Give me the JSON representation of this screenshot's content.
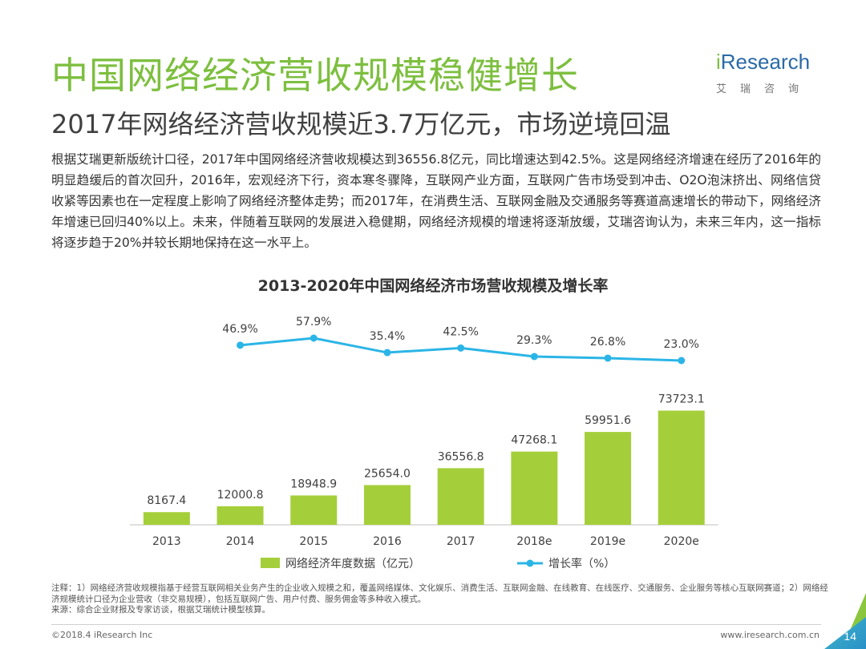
{
  "header": {
    "title": "中国网络经济营收规模稳健增长",
    "subtitle": "2017年网络经济营收规模近3.7万亿元，市场逆境回温",
    "logo": {
      "brand": "iResearch",
      "cn": "艾瑞咨询"
    }
  },
  "body_text": "根据艾瑞更新版统计口径，2017年中国网络经济营收规模达到36556.8亿元，同比增速达到42.5%。这是网络经济增速在经历了2016年的明显趋缓后的首次回升，2016年，宏观经济下行，资本寒冬骤降，互联网产业方面，互联网广告市场受到冲击、O2O泡沫挤出、网络信贷收紧等因素也在一定程度上影响了网络经济整体走势；而2017年，在消费生活、互联网金融及交通服务等赛道高速增长的带动下，网络经济年增速已回归40%以上。未来，伴随着互联网的发展进入稳健期，网络经济规模的增速将逐渐放缓，艾瑞咨询认为，未来三年内，这一指标将逐步趋于20%并较长期地保持在这一水平上。",
  "chart_data": {
    "type": "bar",
    "title": "2013-2020年中国网络经济市场营收规模及增长率",
    "categories": [
      "2013",
      "2014",
      "2015",
      "2016",
      "2017",
      "2018e",
      "2019e",
      "2020e"
    ],
    "series": [
      {
        "name": "网络经济年度数据（亿元）",
        "type": "bar",
        "color": "#a5cf3a",
        "values": [
          8167.4,
          12000.8,
          18948.9,
          25654.0,
          36556.8,
          47268.1,
          59951.6,
          73723.1
        ],
        "labels": [
          "8167.4",
          "12000.8",
          "18948.9",
          "25654.0",
          "36556.8",
          "47268.1",
          "59951.6",
          "73723.1"
        ]
      },
      {
        "name": "增长率（%）",
        "type": "line",
        "color": "#2bb5e6",
        "values": [
          46.9,
          57.9,
          35.4,
          42.5,
          29.3,
          26.8,
          23.0
        ],
        "x": [
          "2014",
          "2015",
          "2016",
          "2017",
          "2018e",
          "2019e",
          "2020e"
        ],
        "labels": [
          "46.9%",
          "57.9%",
          "35.4%",
          "42.5%",
          "29.3%",
          "26.8%",
          "23.0%"
        ]
      }
    ],
    "legend_position": "bottom",
    "grid": false
  },
  "notes": {
    "line1": "注释：1）网络经济营收规模指基于经营互联网相关业务产生的企业收入规模之和，覆盖网络媒体、文化娱乐、消费生活、互联网金融、在线教育、在线医疗、交通服务、企业服务等核心互联网赛道；2）网络经济规模统计口径为企业营收（非交易规模），包括互联网广告、用户付费、服务佣金等多种收入模式。",
    "line2": "来源：综合企业财报及专家访谈，根据艾瑞统计模型核算。"
  },
  "footer": {
    "left": "©2018.4 iResearch Inc",
    "right": "www.iresearch.com.cn",
    "page": "14"
  }
}
